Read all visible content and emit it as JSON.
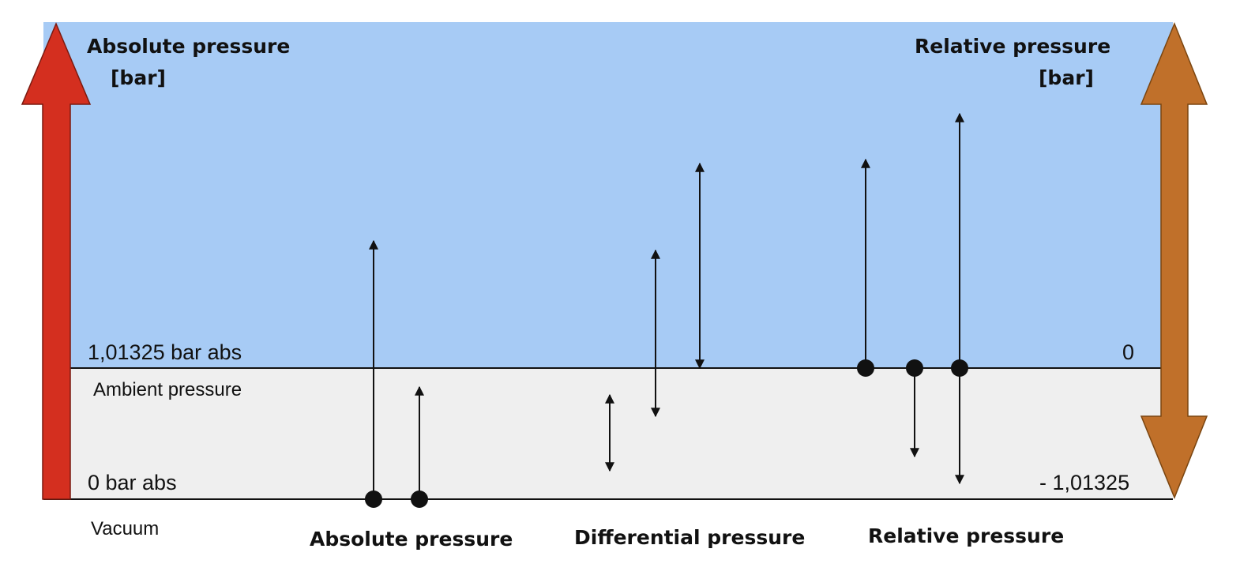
{
  "titles": {
    "absolute_axis_line1": "Absolute pressure",
    "absolute_axis_line2": "[bar]",
    "relative_axis_line1": "Relative pressure",
    "relative_axis_line2": "[bar]"
  },
  "levels": {
    "ambient_value_abs": "1,01325 bar abs",
    "ambient_name": "Ambient pressure",
    "ambient_value_rel": "0",
    "zero_value_abs": "0 bar abs",
    "zero_value_rel": "- 1,01325",
    "vacuum_name": "Vacuum"
  },
  "groups": {
    "absolute": "Absolute pressure",
    "differential": "Differential pressure",
    "relative": "Relative pressure"
  },
  "colors": {
    "overpressure_region": "#a7cbf5",
    "underpressure_region": "#efefef",
    "absolute_axis_arrow": "#d42f1f",
    "relative_axis_arrow": "#c0702a",
    "lines": "#111111"
  }
}
